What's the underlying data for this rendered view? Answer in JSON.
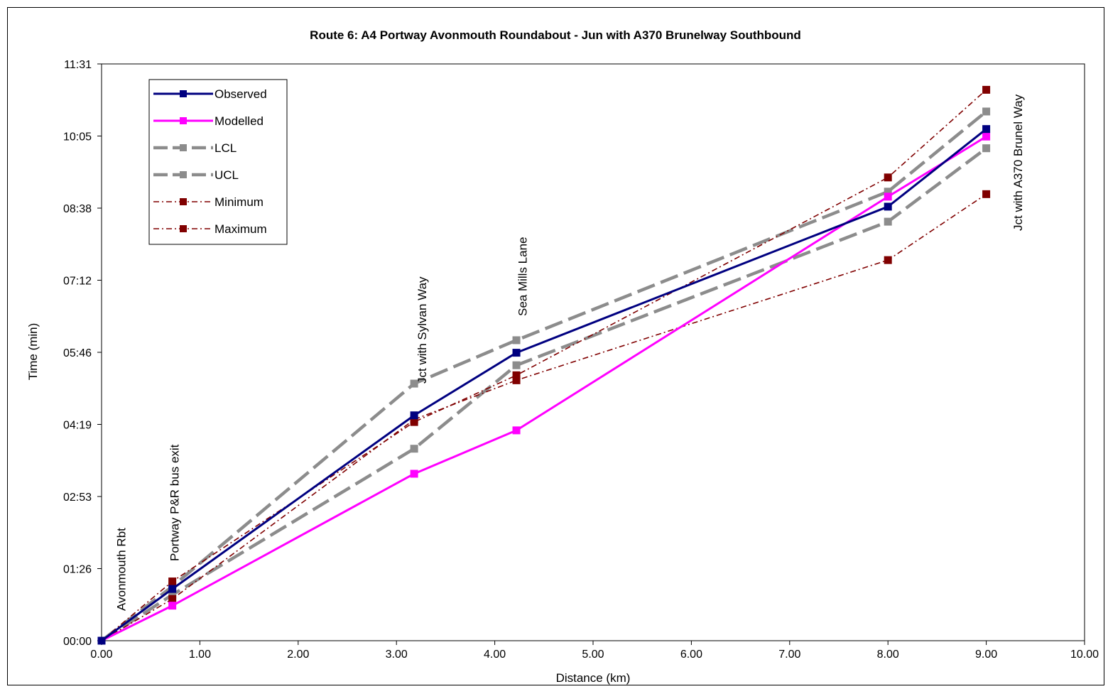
{
  "chart_data": {
    "type": "line",
    "title": "Route 6: A4 Portway Avonmouth Roundabout - Jun with A370 Brunelway Southbound",
    "xlabel": "Distance (km)",
    "ylabel": "Time (min)",
    "xlim": [
      0,
      10
    ],
    "ylim_seconds": [
      0,
      691
    ],
    "x_ticks": [
      "0.00",
      "1.00",
      "2.00",
      "3.00",
      "4.00",
      "5.00",
      "6.00",
      "7.00",
      "8.00",
      "9.00",
      "10.00"
    ],
    "y_ticks": [
      "00:00",
      "01:26",
      "02:53",
      "04:19",
      "05:46",
      "07:12",
      "08:38",
      "10:05",
      "11:31"
    ],
    "grid": false,
    "legend_position": "top-left",
    "x": [
      0.0,
      0.72,
      3.18,
      4.22,
      8.0,
      9.0
    ],
    "series": [
      {
        "name": "Observed",
        "color": "#000080",
        "style": "solid",
        "values_seconds": [
          0,
          62,
          270,
          345,
          520,
          613
        ]
      },
      {
        "name": "Modelled",
        "color": "#FF00FF",
        "style": "solid",
        "values_seconds": [
          0,
          42,
          200,
          252,
          532,
          604
        ]
      },
      {
        "name": "LCL",
        "color": "#8C8C8C",
        "style": "dashed",
        "values_seconds": [
          0,
          55,
          230,
          330,
          502,
          590
        ]
      },
      {
        "name": "UCL",
        "color": "#8C8C8C",
        "style": "dashed",
        "values_seconds": [
          0,
          65,
          308,
          360,
          538,
          634
        ]
      },
      {
        "name": "Minimum",
        "color": "#800000",
        "style": "dash-dot",
        "values_seconds": [
          0,
          50,
          265,
          312,
          456,
          535
        ]
      },
      {
        "name": "Maximum",
        "color": "#800000",
        "style": "dash-dot",
        "values_seconds": [
          0,
          71,
          262,
          318,
          555,
          660
        ]
      }
    ],
    "annotations": [
      "Avonmouth Rbt",
      "Portway P&R bus exit",
      "Jct with Sylvan Way",
      "Sea Mills Lane",
      "Jct with A370 Brunel Way"
    ]
  }
}
